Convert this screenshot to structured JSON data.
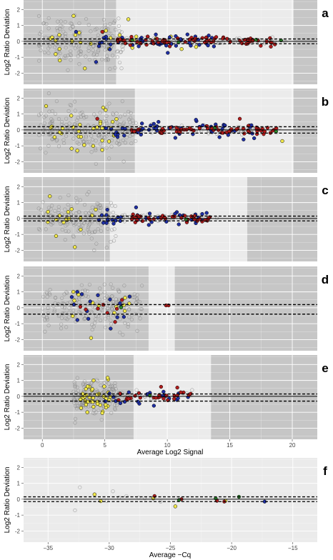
{
  "figure": {
    "ylabel": "Log2 Ratio Deviation",
    "xlabel_signal": "Average Log2 Signal",
    "xlabel_cq": "Average −Cq"
  },
  "colors": {
    "panel_bg": "#ebebeb",
    "shade": "#c6c6c6",
    "grid": "#ffffff",
    "open_point": "#8a8a8a",
    "yellow": "#f2e94a",
    "blue": "#1f2fa3",
    "red": "#b01c1c",
    "green": "#2f8a2f"
  },
  "chart_data": [
    {
      "panel": "a",
      "type": "scatter",
      "xlim": [
        -1.5,
        22
      ],
      "ylim": [
        -2.7,
        2.6
      ],
      "x_ticks": [
        0,
        5,
        10,
        15,
        20
      ],
      "x_tick_labels": false,
      "y_ticks": [
        -2,
        -1,
        0,
        1,
        2
      ],
      "shaded_regions": [
        [
          -1.5,
          5.9
        ],
        [
          20.1,
          22
        ]
      ],
      "hlines_dashed": [
        0.15,
        -0.15
      ],
      "hline_solid": 0,
      "series": [
        {
          "color_key": "open_point",
          "clouds": [
            {
              "x": [
                -0.3,
                6.5
              ],
              "y_sd": 0.75,
              "n": 170
            },
            {
              "x": [
                5,
                19.5
              ],
              "y_sd": 0.09,
              "n": 110
            }
          ]
        },
        {
          "color_key": "yellow",
          "clouds": [
            {
              "x": [
                0.5,
                8
              ],
              "y_sd": 0.5,
              "n": 22
            },
            {
              "x": [
                8,
                12
              ],
              "y_sd": 0.2,
              "n": 3
            }
          ],
          "points": [
            [
              2.5,
              1.6
            ],
            [
              3.4,
              -1.7
            ],
            [
              1.4,
              -1.2
            ],
            [
              12.3,
              -0.35
            ]
          ]
        },
        {
          "color_key": "blue",
          "clouds": [
            {
              "x": [
                4,
                14
              ],
              "y_sd": 0.25,
              "n": 45
            }
          ],
          "points": [
            [
              4.3,
              -1.3
            ],
            [
              2.7,
              0.6
            ],
            [
              5.4,
              -0.5
            ]
          ]
        },
        {
          "color_key": "red",
          "clouds": [
            {
              "x": [
                6,
                19
              ],
              "y_sd": 0.13,
              "n": 70
            }
          ],
          "points": [
            [
              4.8,
              0.6
            ]
          ]
        },
        {
          "color_key": "green",
          "points": [
            [
              7.2,
              0.08
            ],
            [
              10.9,
              -0.05
            ],
            [
              17.1,
              0.1
            ],
            [
              19.1,
              0.06
            ]
          ]
        }
      ]
    },
    {
      "panel": "b",
      "type": "scatter",
      "xlim": [
        -1.5,
        22
      ],
      "ylim": [
        -2.7,
        2.6
      ],
      "x_ticks": [
        0,
        5,
        10,
        15,
        20
      ],
      "x_tick_labels": false,
      "y_ticks": [
        -2,
        -1,
        0,
        1,
        2
      ],
      "shaded_regions": [
        [
          -1.5,
          7.4
        ],
        [
          20.1,
          22
        ]
      ],
      "hlines_dashed": [
        0.2,
        -0.2
      ],
      "hline_solid": 0,
      "series": [
        {
          "color_key": "open_point",
          "clouds": [
            {
              "x": [
                -0.3,
                7.5
              ],
              "y_sd": 0.75,
              "n": 200
            },
            {
              "x": [
                6.5,
                19
              ],
              "y_sd": 0.12,
              "n": 110
            }
          ]
        },
        {
          "color_key": "yellow",
          "clouds": [
            {
              "x": [
                0.5,
                6
              ],
              "y_sd": 0.6,
              "n": 30
            }
          ],
          "points": [
            [
              0.3,
              1.5
            ],
            [
              2.8,
              -1.3
            ],
            [
              19.2,
              -0.7
            ]
          ]
        },
        {
          "color_key": "blue",
          "clouds": [
            {
              "x": [
                5,
                17
              ],
              "y_sd": 0.25,
              "n": 55
            }
          ],
          "points": [
            [
              16.1,
              -0.6
            ]
          ]
        },
        {
          "color_key": "red",
          "clouds": [
            {
              "x": [
                6,
                19
              ],
              "y_sd": 0.15,
              "n": 60
            }
          ],
          "points": [
            [
              4.4,
              0.7
            ],
            [
              15.8,
              0.7
            ]
          ]
        },
        {
          "color_key": "green",
          "points": [
            [
              13.8,
              0.15
            ],
            [
              18.7,
              -0.1
            ]
          ]
        }
      ]
    },
    {
      "panel": "c",
      "type": "scatter",
      "xlim": [
        -1.5,
        22
      ],
      "ylim": [
        -2.7,
        2.6
      ],
      "x_ticks": [
        0,
        5,
        10,
        15,
        20
      ],
      "x_tick_labels": false,
      "y_ticks": [
        -2,
        -1,
        0,
        1,
        2
      ],
      "shaded_regions": [
        [
          -1.5,
          5.4
        ],
        [
          16.4,
          22
        ]
      ],
      "hlines_dashed": [
        0.15,
        -0.15
      ],
      "hline_solid": 0,
      "series": [
        {
          "color_key": "open_point",
          "clouds": [
            {
              "x": [
                -0.3,
                6
              ],
              "y_sd": 0.7,
              "n": 140
            },
            {
              "x": [
                5,
                14
              ],
              "y_sd": 0.12,
              "n": 50
            }
          ]
        },
        {
          "color_key": "yellow",
          "clouds": [
            {
              "x": [
                0.3,
                4.5
              ],
              "y_sd": 0.5,
              "n": 14
            }
          ],
          "points": [
            [
              0.6,
              1.4
            ],
            [
              1.1,
              -1.1
            ],
            [
              2.6,
              -1.8
            ]
          ]
        },
        {
          "color_key": "blue",
          "clouds": [
            {
              "x": [
                4.5,
                13.5
              ],
              "y_sd": 0.25,
              "n": 35
            }
          ],
          "points": [
            [
              7.5,
              0.7
            ],
            [
              5.2,
              0.55
            ]
          ]
        },
        {
          "color_key": "red",
          "clouds": [
            {
              "x": [
                6.5,
                13.5
              ],
              "y_sd": 0.12,
              "n": 40
            }
          ]
        },
        {
          "color_key": "green",
          "points": [
            [
              11.5,
              -0.05
            ]
          ]
        }
      ]
    },
    {
      "panel": "d",
      "type": "scatter",
      "xlim": [
        -1.5,
        22
      ],
      "ylim": [
        -2.7,
        2.6
      ],
      "x_ticks": [
        0,
        5,
        10,
        15,
        20
      ],
      "x_tick_labels": false,
      "y_ticks": [
        -2,
        -1,
        0,
        1,
        2
      ],
      "shaded_regions": [
        [
          -1.5,
          8.5
        ],
        [
          10.6,
          22
        ]
      ],
      "hlines_dashed": [
        0.2,
        -0.4
      ],
      "hline_solid": null,
      "series": [
        {
          "color_key": "open_point",
          "clouds": [
            {
              "x": [
                0,
                8
              ],
              "y_sd": 0.65,
              "n": 200
            }
          ]
        },
        {
          "color_key": "yellow",
          "clouds": [
            {
              "x": [
                1,
                7
              ],
              "y_sd": 0.5,
              "n": 12
            }
          ],
          "points": [
            [
              3.9,
              -1.9
            ],
            [
              6.6,
              -0.2
            ]
          ]
        },
        {
          "color_key": "blue",
          "clouds": [
            {
              "x": [
                2,
                7
              ],
              "y_sd": 0.5,
              "n": 15
            }
          ],
          "points": [
            [
              2.8,
              1.0
            ]
          ]
        },
        {
          "color_key": "red",
          "clouds": [
            {
              "x": [
                3,
                7
              ],
              "y_sd": 0.4,
              "n": 8
            }
          ],
          "points": [
            [
              9.9,
              0.15
            ],
            [
              10.1,
              0.15
            ]
          ]
        },
        {
          "color_key": "green",
          "points": [
            [
              6.3,
              0.02
            ]
          ]
        }
      ]
    },
    {
      "panel": "e",
      "type": "scatter",
      "xlim": [
        -1.5,
        22
      ],
      "ylim": [
        -2.7,
        2.6
      ],
      "x_ticks": [
        0,
        5,
        10,
        15,
        20
      ],
      "x_tick_labels": true,
      "y_ticks": [
        -2,
        -1,
        0,
        1,
        2
      ],
      "shaded_regions": [
        [
          -1.5,
          7.3
        ],
        [
          13.5,
          22
        ]
      ],
      "hlines_dashed": [
        0.15,
        -0.3
      ],
      "hline_solid": 0,
      "series": [
        {
          "color_key": "open_point",
          "clouds": [
            {
              "x": [
                2.5,
                6
              ],
              "y_sd": 0.5,
              "n": 180
            },
            {
              "x": [
                6,
                12
              ],
              "y_sd": 0.2,
              "n": 25
            }
          ]
        },
        {
          "color_key": "yellow",
          "clouds": [
            {
              "x": [
                3,
                5.5
              ],
              "y_sd": 0.45,
              "n": 40
            }
          ],
          "points": [
            [
              4.1,
              1.0
            ],
            [
              3.6,
              -1.0
            ]
          ]
        },
        {
          "color_key": "blue",
          "clouds": [
            {
              "x": [
                5,
                12
              ],
              "y_sd": 0.25,
              "n": 20
            }
          ]
        },
        {
          "color_key": "red",
          "clouds": [
            {
              "x": [
                6,
                12.5
              ],
              "y_sd": 0.15,
              "n": 25
            }
          ],
          "points": [
            [
              9.5,
              0.6
            ],
            [
              10.8,
              0.55
            ]
          ]
        },
        {
          "color_key": "green",
          "points": [
            [
              8.6,
              0.05
            ]
          ]
        }
      ]
    },
    {
      "panel": "f",
      "type": "scatter",
      "xlim": [
        -37,
        -13
      ],
      "ylim": [
        -2.7,
        2.6
      ],
      "x_ticks": [
        -35,
        -30,
        -25,
        -20,
        -15
      ],
      "x_tick_labels": true,
      "y_ticks": [
        -2,
        -1,
        0,
        1,
        2
      ],
      "shaded_regions": [],
      "hlines_dashed": [
        0.15,
        -0.15
      ],
      "hline_solid": 0,
      "series": [
        {
          "color_key": "open_point",
          "points": [
            [
              -32.4,
              0.75
            ],
            [
              -32.8,
              -0.7
            ],
            [
              -29.7,
              0.5
            ],
            [
              -28.6,
              0.2
            ],
            [
              -29.2,
              0.1
            ],
            [
              -27.6,
              0.1
            ],
            [
              -30.2,
              -0.1
            ],
            [
              -25.8,
              -0.15
            ],
            [
              -27.1,
              0.05
            ]
          ]
        },
        {
          "color_key": "yellow",
          "points": [
            [
              -31.2,
              0.3
            ],
            [
              -30.7,
              -0.12
            ],
            [
              -24.6,
              -0.45
            ],
            [
              -26.4,
              0.05
            ],
            [
              -20.5,
              -0.1
            ]
          ]
        },
        {
          "color_key": "blue",
          "points": [
            [
              -17.3,
              -0.15
            ]
          ]
        },
        {
          "color_key": "red",
          "points": [
            [
              -26.3,
              0.2
            ],
            [
              -21.2,
              -0.1
            ],
            [
              -20.6,
              -0.15
            ],
            [
              -24.1,
              0.0
            ]
          ]
        },
        {
          "color_key": "green",
          "points": [
            [
              -24.3,
              -0.05
            ],
            [
              -21.3,
              0.05
            ],
            [
              -19.4,
              0.15
            ]
          ]
        }
      ]
    }
  ]
}
